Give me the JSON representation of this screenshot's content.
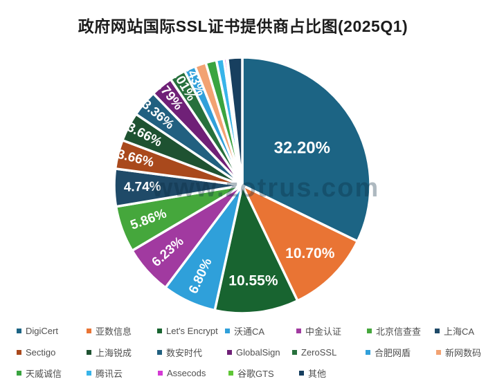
{
  "title": "政府网站国际SSL证书提供商占比图(2025Q1)",
  "watermark": "www.zotrus.com",
  "chart_data": {
    "type": "pie",
    "title": "政府网站国际SSL证书提供商占比图(2025Q1)",
    "legend_position": "bottom",
    "start_angle_deg": 0,
    "direction": "clockwise",
    "unlabeled_small_slice_values_estimated": true,
    "slices": [
      {
        "name": "DigiCert",
        "value": 32.2,
        "label": "32.20%",
        "color": "#1c6484"
      },
      {
        "name": "亚数信息",
        "value": 10.7,
        "label": "10.70%",
        "color": "#e97434"
      },
      {
        "name": "Let's Encrypt",
        "value": 10.55,
        "label": "10.55%",
        "color": "#186430"
      },
      {
        "name": "沃通CA",
        "value": 6.8,
        "label": "6.80%",
        "color": "#2fa0da"
      },
      {
        "name": "中金认证",
        "value": 6.23,
        "label": "6.23%",
        "color": "#a13aa0"
      },
      {
        "name": "北京信查查",
        "value": 5.86,
        "label": "5.86%",
        "color": "#45a73c"
      },
      {
        "name": "上海CA",
        "value": 4.74,
        "label": "4.74%",
        "color": "#1f4a68"
      },
      {
        "name": "Sectigo",
        "value": 3.66,
        "label": "3.66%",
        "color": "#a9491c"
      },
      {
        "name": "上海锐成",
        "value": 3.66,
        "label": "3.66%",
        "color": "#1e5231"
      },
      {
        "name": "数安时代",
        "value": 3.36,
        "label": "3.36%",
        "color": "#216080"
      },
      {
        "name": "GlobalSign",
        "value": 2.79,
        "label": "2.79%",
        "color": "#6f2077"
      },
      {
        "name": "ZeroSSL",
        "value": 2.01,
        "label": "2.01%",
        "color": "#27703c"
      },
      {
        "name": "合肥网盾",
        "value": 1.43,
        "label": "1.43%",
        "color": "#31a0da"
      },
      {
        "name": "新网数码",
        "value": 1.4,
        "label": "",
        "color": "#f2a272"
      },
      {
        "name": "天威诚信",
        "value": 1.35,
        "label": "",
        "color": "#3aa440"
      },
      {
        "name": "腾讯云",
        "value": 0.95,
        "label": "",
        "color": "#38b4e9"
      },
      {
        "name": "Assecods",
        "value": 0.35,
        "label": "",
        "color": "#d43ad4"
      },
      {
        "name": "谷歌GTS",
        "value": 0.12,
        "label": "",
        "color": "#5fc636"
      },
      {
        "name": "其他",
        "value": 1.84,
        "label": "",
        "color": "#173f5f"
      }
    ]
  }
}
